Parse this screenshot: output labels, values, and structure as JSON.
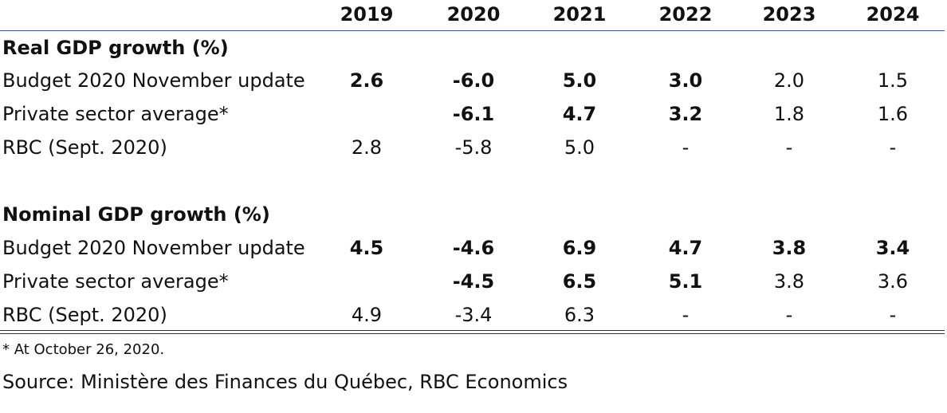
{
  "table": {
    "years": [
      "2019",
      "2020",
      "2021",
      "2022",
      "2023",
      "2024"
    ],
    "sections": [
      {
        "title": "Real GDP growth (%)",
        "rows": [
          {
            "label": "Budget 2020 November update",
            "values": [
              "2.6",
              "-6.0",
              "5.0",
              "3.0",
              "2.0",
              "1.5"
            ],
            "bold": [
              true,
              true,
              true,
              true,
              false,
              false
            ]
          },
          {
            "label": "Private sector average*",
            "values": [
              "",
              "-6.1",
              "4.7",
              "3.2",
              "1.8",
              "1.6"
            ],
            "bold": [
              false,
              true,
              true,
              true,
              false,
              false
            ]
          },
          {
            "label": "RBC (Sept. 2020)",
            "values": [
              "2.8",
              "-5.8",
              "5.0",
              "-",
              "-",
              "-"
            ],
            "bold": [
              false,
              false,
              false,
              false,
              false,
              false
            ]
          }
        ]
      },
      {
        "title": "Nominal GDP growth (%)",
        "rows": [
          {
            "label": "Budget 2020 November update",
            "values": [
              "4.5",
              "-4.6",
              "6.9",
              "4.7",
              "3.8",
              "3.4"
            ],
            "bold": [
              true,
              true,
              true,
              true,
              true,
              true
            ]
          },
          {
            "label": "Private sector average*",
            "values": [
              "",
              "-4.5",
              "6.5",
              "5.1",
              "3.8",
              "3.6"
            ],
            "bold": [
              false,
              true,
              true,
              true,
              false,
              false
            ]
          },
          {
            "label": "RBC (Sept. 2020)",
            "values": [
              "4.9",
              "-3.4",
              "6.3",
              "-",
              "-",
              "-"
            ],
            "bold": [
              false,
              false,
              false,
              false,
              false,
              false
            ]
          }
        ]
      }
    ]
  },
  "footnote": "* At October 26, 2020.",
  "source": "Source: Ministère des Finances du Québec, RBC Economics"
}
